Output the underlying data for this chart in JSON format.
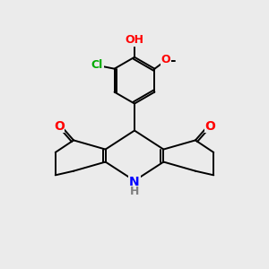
{
  "background_color": "#ebebeb",
  "bond_color": "#000000",
  "atom_colors": {
    "O": "#ff0000",
    "N": "#0000ff",
    "Cl": "#00aa00",
    "C": "#000000",
    "H": "#808080"
  },
  "figsize": [
    3.0,
    3.0
  ],
  "dpi": 100,
  "xlim": [
    0,
    10
  ],
  "ylim": [
    0,
    10
  ]
}
